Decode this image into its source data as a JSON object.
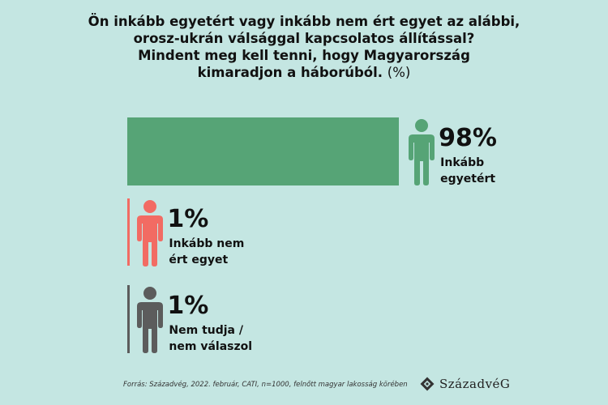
{
  "chart_data": {
    "type": "bar",
    "title": "Ön inkább egyetért vagy inkább nem ért egyet az alábbi, orosz-ukrán válsággal kapcsolatos állítással? Mindent meg kell tenni, hogy Magyarország kimaradjon a háborúból.",
    "title_lines": [
      "Ön inkább egyetért vagy inkább nem ért egyet az alábbi,",
      "orosz-ukrán válsággal kapcsolatos állítással?",
      "Mindent meg kell tenni, hogy Magyarország",
      "kimaradjon a háborúból."
    ],
    "unit": "(%)",
    "orientation": "horizontal",
    "xlim": [
      0,
      100
    ],
    "categories": [
      "Inkább egyetért",
      "Inkább nem ért egyet",
      "Nem tudja / nem válaszol"
    ],
    "category_lines": [
      [
        "Inkább",
        "egyetért"
      ],
      [
        "Inkább nem",
        "ért egyet"
      ],
      [
        "Nem tudja /",
        "nem válaszol"
      ]
    ],
    "values": [
      98,
      1,
      1
    ],
    "value_labels": [
      "98%",
      "1%",
      "1%"
    ],
    "colors": [
      "#56a476",
      "#f26b63",
      "#5c5c5c"
    ],
    "icon": "person-icon"
  },
  "source": "Forrás: Századvég, 2022. február, CATI, n=1000, felnőtt magyar lakosság körében",
  "logo": "SzázadvéG",
  "background": "#c4e6e2"
}
